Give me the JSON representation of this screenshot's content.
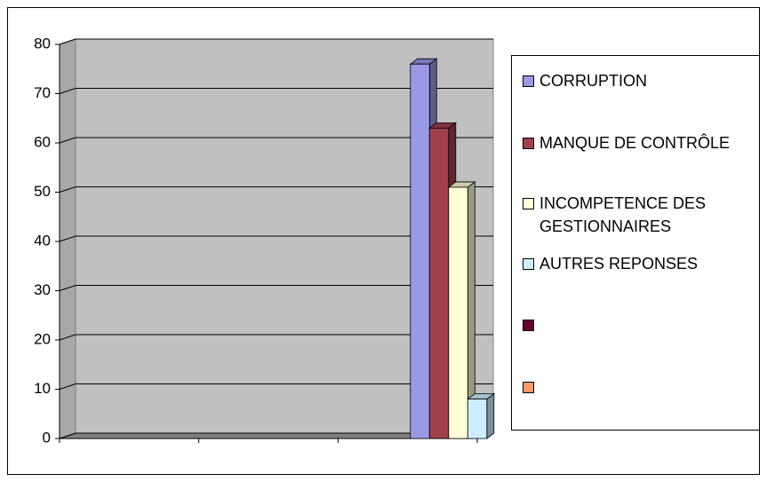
{
  "chart_data": {
    "type": "bar3d",
    "categories": [
      null,
      null,
      null
    ],
    "series": [
      {
        "name": "CORRUPTION",
        "color": "#9999e6",
        "values": [
          null,
          null,
          76
        ]
      },
      {
        "name": "MANQUE DE CONTRÔLE",
        "color": "#a3404d",
        "values": [
          null,
          null,
          63
        ]
      },
      {
        "name": "INCOMPETENCE DES GESTIONNAIRES",
        "color": "#ffffd6",
        "values": [
          null,
          null,
          51
        ]
      },
      {
        "name": "AUTRES REPONSES",
        "color": "#cceeff",
        "values": [
          null,
          null,
          8
        ]
      },
      {
        "name": null,
        "color": "#660033",
        "values": [
          null,
          null,
          null
        ]
      },
      {
        "name": null,
        "color": "#ff9966",
        "values": [
          null,
          null,
          null
        ]
      }
    ],
    "ylim": [
      0,
      80
    ],
    "yticks": [
      0,
      10,
      20,
      30,
      40,
      50,
      60,
      70,
      80
    ],
    "grid": true
  }
}
